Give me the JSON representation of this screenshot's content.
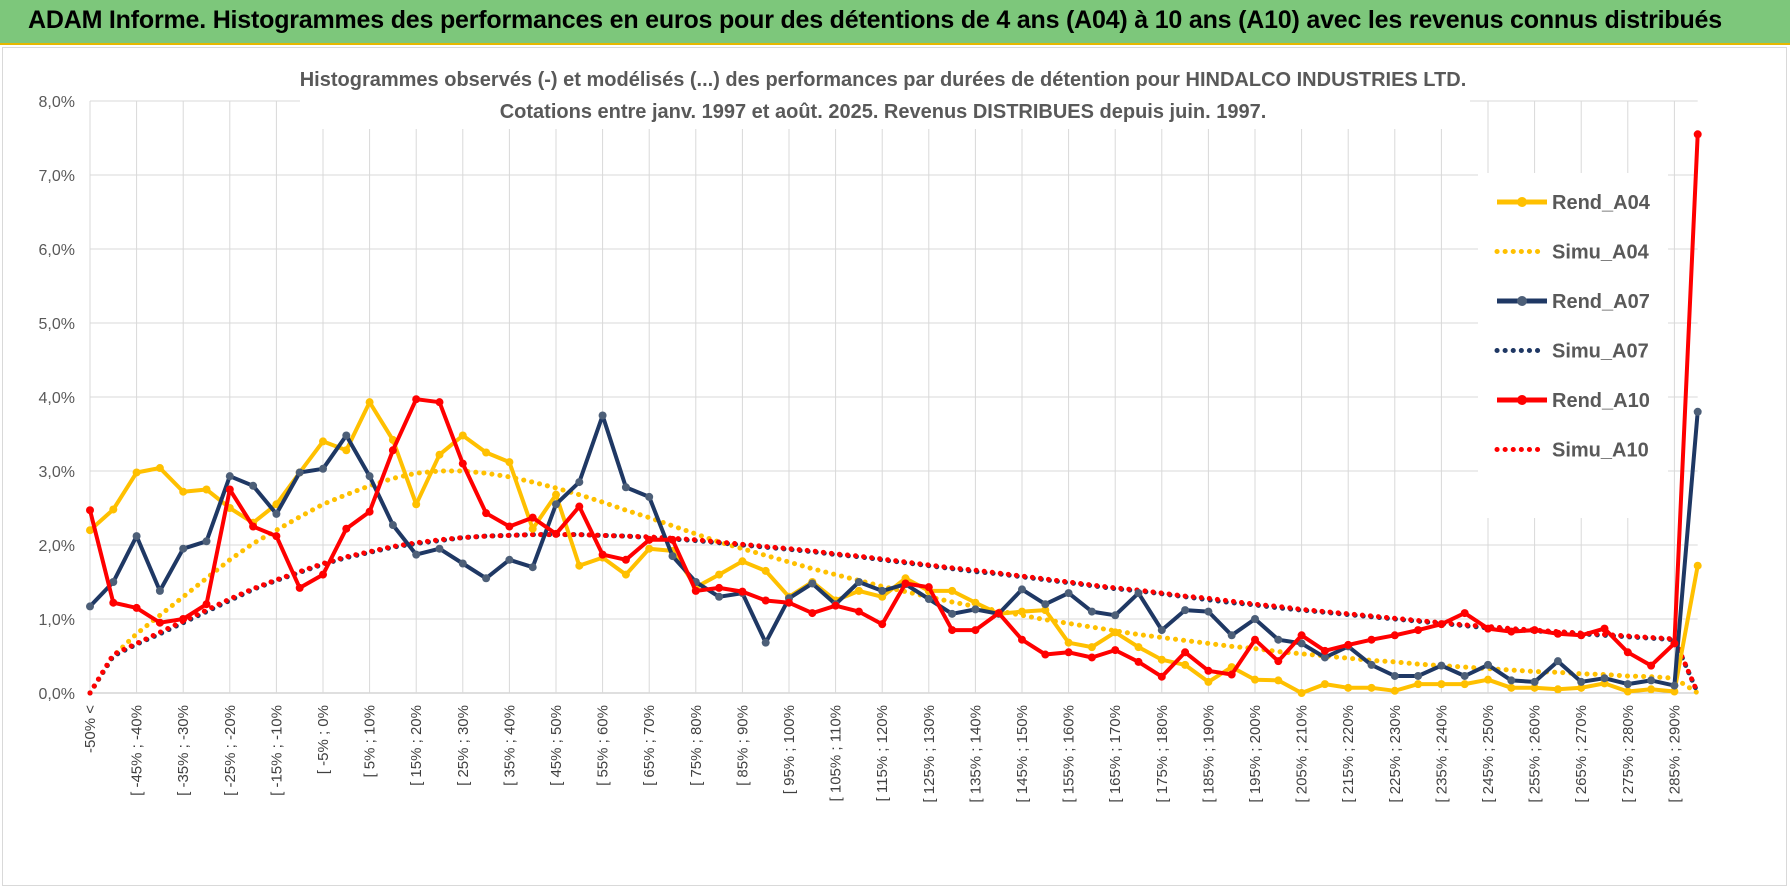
{
  "banner": {
    "title": "ADAM Informe. Histogrammes des performances en euros pour des détentions de 4 ans (A04) à 10 ans (A10) avec les revenus connus distribués"
  },
  "colors": {
    "banner_bg": "#7dc77b",
    "banner_border": "#e6b800",
    "rend_a04": "#ffc000",
    "rend_a07": "#1f3864",
    "rend_a10": "#ff0000",
    "marker_a07": "#4d5f78"
  },
  "chart_data": {
    "type": "line",
    "title_lines": [
      "Histogrammes observés (-) et modélisés (...) des performances par durées de détention pour HINDALCO INDUSTRIES LTD.",
      "Cotations entre janv. 1997 et août. 2025. Revenus DISTRIBUES depuis juin. 1997."
    ],
    "xlabel": "",
    "ylabel": "",
    "ylim": [
      0,
      8
    ],
    "y_ticks": [
      "0,0%",
      "1,0%",
      "2,0%",
      "3,0%",
      "4,0%",
      "5,0%",
      "6,0%",
      "7,0%",
      "8,0%"
    ],
    "grid": true,
    "legend_position": "right",
    "x_tick_labels": [
      "-50% <",
      "[ -45% ; -40%",
      "[ -35% ; -30%",
      "[ -25% ; -20%",
      "[ -15% ; -10%",
      "[ -5% ; 0%",
      "[ 5% ; 10%",
      "[ 15% ; 20%",
      "[ 25% ; 30%",
      "[ 35% ; 40%",
      "[ 45% ; 50%",
      "[ 55% ; 60%",
      "[ 65% ; 70%",
      "[ 75% ; 80%",
      "[ 85% ; 90%",
      "[ 95% ; 100%",
      "[ 105% ; 110%",
      "[ 115% ; 120%",
      "[ 125% ; 130%",
      "[ 135% ; 140%",
      "[ 145% ; 150%",
      "[ 155% ; 160%",
      "[ 165% ; 170%",
      "[ 175% ; 180%",
      "[ 185% ; 190%",
      "[ 195% ; 200%",
      "[ 205% ; 210%",
      "[ 215% ; 220%",
      "[ 225% ; 230%",
      "[ 235% ; 240%",
      "[ 245% ; 250%",
      "[ 255% ; 260%",
      "[ 265% ; 270%",
      "[ 275% ; 280%",
      "[ 285% ; 290%"
    ],
    "series": [
      {
        "name": "Rend_A04",
        "style": "solid",
        "color": "#ffc000",
        "values": [
          2.2,
          2.48,
          2.98,
          3.04,
          2.72,
          2.75,
          2.5,
          2.3,
          2.55,
          2.98,
          3.4,
          3.28,
          3.93,
          3.42,
          2.55,
          3.22,
          3.48,
          3.25,
          3.12,
          2.22,
          2.68,
          1.72,
          1.83,
          1.6,
          1.95,
          1.92,
          1.43,
          1.6,
          1.78,
          1.65,
          1.3,
          1.5,
          1.25,
          1.38,
          1.3,
          1.55,
          1.38,
          1.38,
          1.22,
          1.07,
          1.1,
          1.12,
          0.68,
          0.62,
          0.82,
          0.62,
          0.45,
          0.38,
          0.15,
          0.35,
          0.18,
          0.17,
          0.0,
          0.12,
          0.07,
          0.07,
          0.03,
          0.12,
          0.12,
          0.12,
          0.18,
          0.07,
          0.07,
          0.05,
          0.07,
          0.13,
          0.02,
          0.05,
          0.02,
          1.72
        ]
      },
      {
        "name": "Simu_A04",
        "style": "dotted",
        "color": "#ffc000",
        "values": [
          0.0,
          0.5,
          0.8,
          1.05,
          1.3,
          1.55,
          1.8,
          2.02,
          2.2,
          2.38,
          2.55,
          2.68,
          2.8,
          2.9,
          2.97,
          3.0,
          3.0,
          2.97,
          2.92,
          2.85,
          2.77,
          2.68,
          2.58,
          2.47,
          2.37,
          2.26,
          2.15,
          2.04,
          1.95,
          1.86,
          1.77,
          1.68,
          1.6,
          1.52,
          1.44,
          1.37,
          1.3,
          1.23,
          1.17,
          1.11,
          1.05,
          0.99,
          0.94,
          0.89,
          0.84,
          0.79,
          0.75,
          0.71,
          0.67,
          0.63,
          0.6,
          0.56,
          0.53,
          0.5,
          0.47,
          0.44,
          0.42,
          0.39,
          0.37,
          0.35,
          0.33,
          0.31,
          0.29,
          0.28,
          0.26,
          0.25,
          0.23,
          0.22,
          0.2,
          0.0
        ]
      },
      {
        "name": "Rend_A07",
        "style": "solid",
        "color": "#1f3864",
        "values": [
          1.17,
          1.5,
          2.12,
          1.38,
          1.95,
          2.05,
          2.93,
          2.8,
          2.42,
          2.98,
          3.03,
          3.48,
          2.93,
          2.27,
          1.87,
          1.95,
          1.75,
          1.55,
          1.8,
          1.7,
          2.55,
          2.85,
          3.75,
          2.78,
          2.65,
          1.85,
          1.5,
          1.3,
          1.35,
          0.68,
          1.28,
          1.48,
          1.2,
          1.5,
          1.38,
          1.47,
          1.27,
          1.07,
          1.13,
          1.07,
          1.4,
          1.2,
          1.35,
          1.1,
          1.05,
          1.35,
          0.85,
          1.12,
          1.1,
          0.78,
          1.0,
          0.72,
          0.67,
          0.48,
          0.63,
          0.38,
          0.23,
          0.23,
          0.37,
          0.23,
          0.38,
          0.17,
          0.15,
          0.43,
          0.15,
          0.2,
          0.12,
          0.17,
          0.1,
          3.8
        ]
      },
      {
        "name": "Simu_A07",
        "style": "dotted",
        "color": "#1f3864",
        "values": [
          0.0,
          0.5,
          0.66,
          0.8,
          0.95,
          1.1,
          1.25,
          1.4,
          1.52,
          1.63,
          1.74,
          1.83,
          1.9,
          1.97,
          2.02,
          2.06,
          2.1,
          2.12,
          2.13,
          2.14,
          2.14,
          2.14,
          2.13,
          2.12,
          2.1,
          2.08,
          2.06,
          2.03,
          2.0,
          1.97,
          1.94,
          1.91,
          1.87,
          1.84,
          1.8,
          1.76,
          1.72,
          1.68,
          1.64,
          1.61,
          1.57,
          1.53,
          1.49,
          1.45,
          1.41,
          1.38,
          1.34,
          1.3,
          1.26,
          1.22,
          1.19,
          1.15,
          1.12,
          1.09,
          1.06,
          1.03,
          1.0,
          0.97,
          0.94,
          0.91,
          0.88,
          0.86,
          0.84,
          0.82,
          0.8,
          0.78,
          0.76,
          0.74,
          0.72,
          0.0
        ]
      },
      {
        "name": "Rend_A10",
        "style": "solid",
        "color": "#ff0000",
        "values": [
          2.47,
          1.22,
          1.15,
          0.95,
          1.0,
          1.2,
          2.75,
          2.25,
          2.12,
          1.42,
          1.6,
          2.22,
          2.45,
          3.28,
          3.97,
          3.93,
          3.1,
          2.43,
          2.25,
          2.37,
          2.15,
          2.52,
          1.87,
          1.8,
          2.07,
          2.07,
          1.38,
          1.42,
          1.37,
          1.25,
          1.22,
          1.08,
          1.18,
          1.1,
          0.93,
          1.48,
          1.43,
          0.85,
          0.85,
          1.08,
          0.72,
          0.52,
          0.55,
          0.48,
          0.58,
          0.42,
          0.22,
          0.55,
          0.3,
          0.25,
          0.72,
          0.43,
          0.78,
          0.57,
          0.65,
          0.72,
          0.78,
          0.85,
          0.93,
          1.08,
          0.87,
          0.83,
          0.85,
          0.8,
          0.78,
          0.87,
          0.55,
          0.37,
          0.67,
          7.55
        ]
      },
      {
        "name": "Simu_A10",
        "style": "dotted",
        "color": "#ff0000",
        "values": [
          0.0,
          0.52,
          0.67,
          0.82,
          0.97,
          1.12,
          1.27,
          1.41,
          1.53,
          1.64,
          1.75,
          1.84,
          1.91,
          1.98,
          2.03,
          2.07,
          2.1,
          2.12,
          2.13,
          2.14,
          2.14,
          2.14,
          2.13,
          2.12,
          2.11,
          2.09,
          2.07,
          2.04,
          2.01,
          1.98,
          1.95,
          1.92,
          1.88,
          1.85,
          1.81,
          1.77,
          1.73,
          1.69,
          1.66,
          1.62,
          1.58,
          1.54,
          1.5,
          1.46,
          1.42,
          1.39,
          1.35,
          1.31,
          1.28,
          1.24,
          1.2,
          1.17,
          1.13,
          1.1,
          1.07,
          1.04,
          1.01,
          0.98,
          0.95,
          0.92,
          0.9,
          0.87,
          0.85,
          0.83,
          0.81,
          0.79,
          0.77,
          0.75,
          0.73,
          0.0
        ]
      }
    ]
  }
}
